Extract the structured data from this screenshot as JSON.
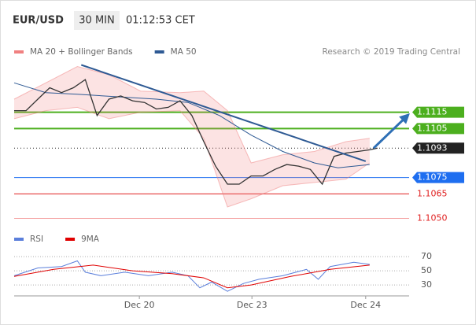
{
  "header": {
    "symbol": "EUR/USD",
    "interval": "30 MIN",
    "time": "01:12:53 CET"
  },
  "credit": "Research © 2019 Trading Central",
  "chart_data": [
    {
      "type": "line",
      "xlim": [
        0,
        100
      ],
      "ylim": [
        1.1044,
        1.115
      ],
      "series": [
        {
          "name": "MA 20 + Bollinger Bands",
          "color": "#f08080",
          "x": [
            0,
            8,
            16,
            24,
            32,
            42,
            48,
            54,
            60,
            68,
            76,
            84,
            90
          ],
          "upper": [
            1.1123,
            1.1133,
            1.1143,
            1.1138,
            1.1128,
            1.1127,
            1.1128,
            1.1116,
            1.1084,
            1.1089,
            1.1091,
            1.1097,
            1.1099
          ],
          "lower": [
            1.1111,
            1.1116,
            1.1118,
            1.1111,
            1.1115,
            1.1116,
            1.1099,
            1.1057,
            1.1062,
            1.107,
            1.1072,
            1.1074,
            1.1084
          ]
        },
        {
          "name": "MA 50",
          "color": "#2e5a94",
          "x": [
            0,
            8,
            16,
            36,
            44,
            52,
            60,
            68,
            76,
            82,
            90
          ],
          "values": [
            1.1133,
            1.1127,
            1.1126,
            1.1123,
            1.1121,
            1.1113,
            1.1101,
            1.1091,
            1.1084,
            1.1081,
            1.1083
          ]
        },
        {
          "color": "#333333",
          "x": [
            0,
            3,
            6,
            9,
            12,
            15,
            18,
            21,
            24,
            27,
            30,
            33,
            36,
            39,
            42,
            45,
            48,
            51,
            54,
            57,
            60,
            63,
            66,
            69,
            72,
            75,
            78,
            81,
            84,
            87,
            90,
            92
          ],
          "values": [
            1.1116,
            1.1116,
            1.1123,
            1.113,
            1.1127,
            1.113,
            1.1135,
            1.1113,
            1.1123,
            1.1125,
            1.1122,
            1.1121,
            1.1117,
            1.1118,
            1.1122,
            1.1113,
            1.1097,
            1.1082,
            1.1071,
            1.1071,
            1.1076,
            1.1076,
            1.108,
            1.1083,
            1.1082,
            1.108,
            1.1071,
            1.1088,
            1.109,
            1.1091,
            1.1092,
            1.1093
          ]
        }
      ],
      "trendline": {
        "color": "#2e5a94",
        "x": [
          17,
          89
        ],
        "values": [
          1.1144,
          1.1085
        ]
      },
      "forecast": {
        "color": "#2e6fb5",
        "x": [
          91,
          99.6
        ],
        "values": [
          1.1093,
          1.1113
        ]
      },
      "levels": [
        {
          "value": 1.1115,
          "label": "1.1115",
          "color": "#4caf1e",
          "style": "box",
          "line": "solid"
        },
        {
          "value": 1.1105,
          "label": "1.1105",
          "color": "#4caf1e",
          "style": "box",
          "line": "solid"
        },
        {
          "value": 1.1093,
          "label": "1.1093",
          "color": "#222222",
          "style": "box",
          "line": "dotted"
        },
        {
          "value": 1.1075,
          "label": "1.1075",
          "color": "#1e6ef0",
          "style": "box",
          "line": "solid"
        },
        {
          "value": 1.1065,
          "label": "1.1065",
          "color": "#e02020",
          "style": "text",
          "line": "solid"
        },
        {
          "value": 1.105,
          "label": "1.1050",
          "color": "#f4a0a0",
          "style": "text",
          "line": "solid"
        }
      ]
    },
    {
      "type": "line",
      "xlim": [
        0,
        100
      ],
      "ylim": [
        19,
        79
      ],
      "yticks": [
        30,
        50,
        70
      ],
      "grid": true,
      "xticks": [
        {
          "value": 31.7,
          "label": "Dec 20"
        },
        {
          "value": 60.2,
          "label": "Dec 23"
        },
        {
          "value": 89,
          "label": "Dec 24"
        }
      ],
      "series": [
        {
          "name": "RSI",
          "color": "#5b7fdb",
          "x": [
            0,
            6,
            12,
            16,
            18,
            22,
            28,
            34,
            40,
            44,
            47,
            50,
            54,
            58,
            62,
            68,
            74,
            77,
            80,
            86,
            90
          ],
          "values": [
            43,
            54,
            56,
            64,
            48,
            43,
            48,
            43,
            48,
            43,
            26,
            34,
            21,
            32,
            38,
            43,
            52,
            38,
            56,
            62,
            59
          ]
        },
        {
          "name": "9MA",
          "color": "#e00000",
          "x": [
            0,
            10,
            20,
            30,
            40,
            48,
            54,
            60,
            70,
            80,
            90
          ],
          "values": [
            42,
            52,
            58,
            50,
            46,
            40,
            26,
            30,
            42,
            52,
            58
          ]
        }
      ]
    }
  ]
}
